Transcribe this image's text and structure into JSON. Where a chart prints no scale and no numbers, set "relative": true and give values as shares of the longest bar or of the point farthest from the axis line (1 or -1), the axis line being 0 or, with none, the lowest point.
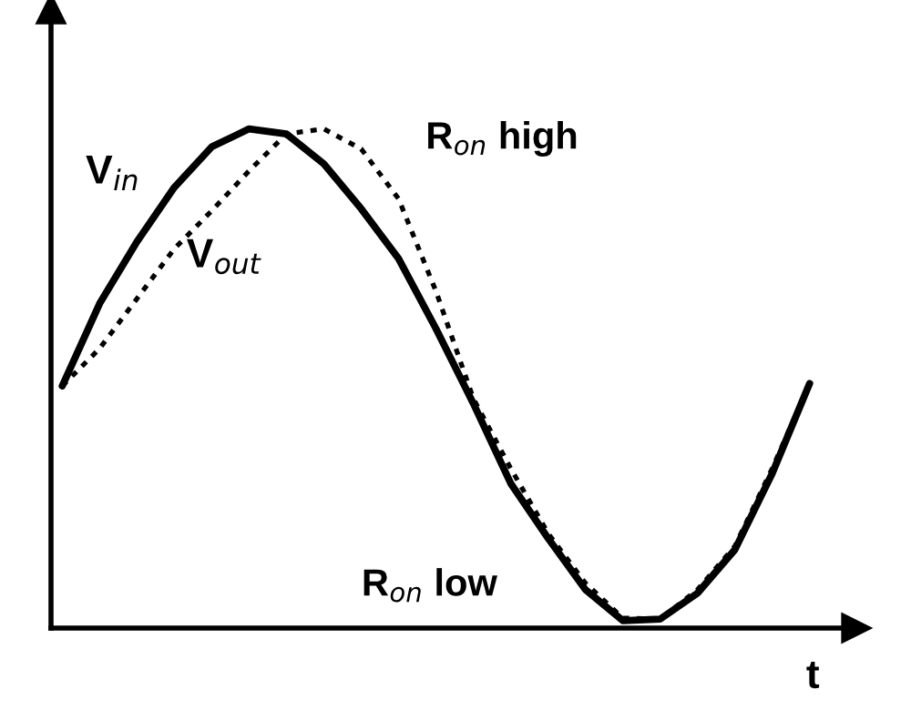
{
  "chart_data": {
    "type": "line",
    "relative": true,
    "xlabel": "t",
    "categories": [
      null,
      null,
      null,
      null,
      null,
      null,
      null,
      null,
      null,
      null,
      null,
      null,
      null,
      null,
      null,
      null,
      null,
      null,
      null,
      null,
      null
    ],
    "series": [
      {
        "name": "V$_{in}$",
        "color": "#000000",
        "line_style": "solid",
        "values": [
          0.485,
          0.65,
          0.774,
          0.883,
          0.964,
          1.0,
          0.99,
          0.93,
          0.84,
          0.74,
          0.6,
          0.45,
          0.29,
          0.18,
          0.077,
          0.015,
          0.018,
          0.07,
          0.157,
          0.31,
          0.49
        ]
      },
      {
        "name": "V$_{out}$",
        "color": "#000000",
        "line_style": "dotted",
        "values": [
          0.485,
          0.56,
          0.66,
          0.76,
          0.836,
          0.916,
          0.99,
          1.0,
          0.96,
          0.86,
          0.675,
          0.46,
          0.32,
          0.19,
          0.09,
          0.02,
          0.018,
          0.077,
          0.164,
          0.32,
          0.49
        ]
      }
    ],
    "annotations": [
      "R$_{on}$ high",
      "R$_{on}$ low"
    ],
    "legend": false,
    "marker": "none"
  }
}
